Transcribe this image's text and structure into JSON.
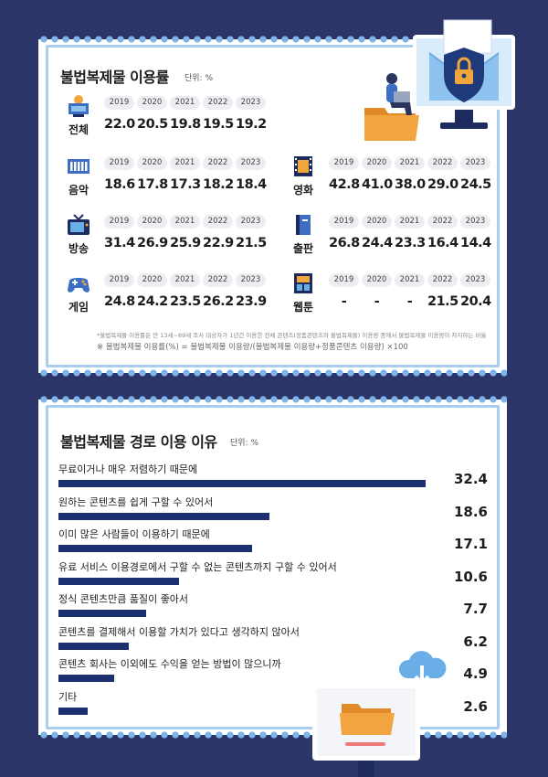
{
  "usage": {
    "title": "불법복제물 이용률",
    "unit": "단위: %",
    "categories": [
      {
        "name": "전체",
        "years": [
          "2019",
          "2020",
          "2021",
          "2022",
          "2023"
        ],
        "values": [
          "22.0",
          "20.5",
          "19.8",
          "19.5",
          "19.2"
        ],
        "icon": "monitor-icon"
      },
      {
        "name": "음악",
        "years": [
          "2019",
          "2020",
          "2021",
          "2022",
          "2023"
        ],
        "values": [
          "18.6",
          "17.8",
          "17.3",
          "18.2",
          "18.4"
        ],
        "icon": "music-keyboard-icon"
      },
      {
        "name": "영화",
        "years": [
          "2019",
          "2020",
          "2021",
          "2022",
          "2023"
        ],
        "values": [
          "42.8",
          "41.0",
          "38.0",
          "29.0",
          "24.5"
        ],
        "icon": "film-icon"
      },
      {
        "name": "방송",
        "years": [
          "2019",
          "2020",
          "2021",
          "2022",
          "2023"
        ],
        "values": [
          "31.4",
          "26.9",
          "25.9",
          "22.9",
          "21.5"
        ],
        "icon": "tv-icon"
      },
      {
        "name": "출판",
        "years": [
          "2019",
          "2020",
          "2021",
          "2022",
          "2023"
        ],
        "values": [
          "26.8",
          "24.4",
          "23.3",
          "16.4",
          "14.4"
        ],
        "icon": "book-icon"
      },
      {
        "name": "게임",
        "years": [
          "2019",
          "2020",
          "2021",
          "2022",
          "2023"
        ],
        "values": [
          "24.8",
          "24.2",
          "23.5",
          "26.2",
          "23.9"
        ],
        "icon": "gamepad-icon"
      },
      {
        "name": "웹툰",
        "years": [
          "2019",
          "2020",
          "2021",
          "2022",
          "2023"
        ],
        "values": [
          "-",
          "-",
          "-",
          "21.5",
          "20.4"
        ],
        "icon": "webtoon-icon"
      }
    ],
    "note": "*불법복제물 이용률은 만 13세~69세 조사 대상자가 1년간 이용한 전체 콘텐츠(정품콘텐츠와 불법복제물) 이용량 중에서 불법복제물 이용량이 차지하는 비율",
    "formula": "※ 불법복제물 이용률(%) = 불법복제물 이용량/(불법복제물 이용량+정품콘텐츠 이용량) ×100"
  },
  "reasons": {
    "title": "불법복제물 경로 이용 이유",
    "unit": "단위: %",
    "items": [
      {
        "label": "무료이거나 매우 저렴하기 때문에",
        "value": "32.4"
      },
      {
        "label": "원하는 콘텐츠를 쉽게 구할 수 있어서",
        "value": "18.6"
      },
      {
        "label": "이미 많은 사람들이 이용하기 때문에",
        "value": "17.1"
      },
      {
        "label": "유료 서비스 이용경로에서 구할 수 없는 콘텐츠까지 구할 수 있어서",
        "value": "10.6"
      },
      {
        "label": "정식 콘텐츠만큼 품질이 좋아서",
        "value": "7.7"
      },
      {
        "label": "콘텐츠를 결제해서 이용할 가치가 있다고 생각하지 않아서",
        "value": "6.2"
      },
      {
        "label": "콘텐츠 회사는 이외에도 수익을 얻는 방법이 많으니까",
        "value": "4.9"
      },
      {
        "label": "기타",
        "value": "2.6"
      }
    ]
  },
  "colors": {
    "background": "#2b3568",
    "bar": "#1c2f6e",
    "frame": "#a9cdef",
    "accent": "#f0a63a"
  }
}
